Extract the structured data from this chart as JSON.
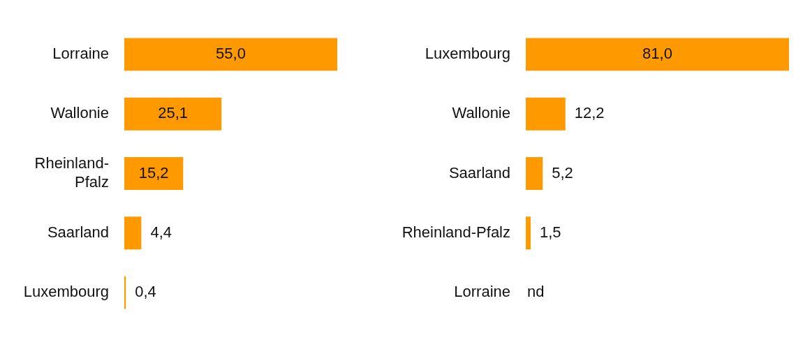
{
  "chart_data": [
    {
      "type": "bar",
      "orientation": "horizontal",
      "categories": [
        "Lorraine",
        "Wallonie",
        "Rheinland-Pfalz",
        "Saarland",
        "Luxembourg"
      ],
      "values": [
        55.0,
        25.1,
        15.2,
        4.4,
        0.4
      ],
      "value_labels": [
        "55,0",
        "25,1",
        "15,2",
        "4,4",
        "0,4"
      ],
      "color": "#ff9900"
    },
    {
      "type": "bar",
      "orientation": "horizontal",
      "categories": [
        "Luxembourg",
        "Wallonie",
        "Saarland",
        "Rheinland-Pfalz",
        "Lorraine"
      ],
      "values": [
        81.0,
        12.2,
        5.2,
        1.5,
        null
      ],
      "value_labels": [
        "81,0",
        "12,2",
        "5,2",
        "1,5",
        "nd"
      ],
      "color": "#ff9900"
    }
  ]
}
